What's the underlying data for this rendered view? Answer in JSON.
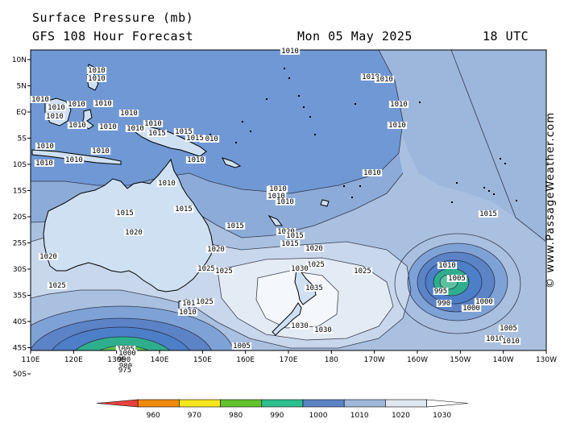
{
  "header": {
    "title": "Surface Pressure (mb)",
    "subtitle": "GFS 108 Hour Forecast",
    "date": "Mon 05 May 2025",
    "time": "18 UTC"
  },
  "credit": "© www.PassageWeather.com",
  "axes": {
    "lat_labels": [
      "10N",
      "5N",
      "EQ",
      "5S",
      "10S",
      "15S",
      "20S",
      "25S",
      "30S",
      "35S",
      "40S",
      "45S",
      "50S"
    ],
    "lon_labels": [
      "110E",
      "120E",
      "130E",
      "140E",
      "150E",
      "160E",
      "170E",
      "180",
      "170W",
      "160W",
      "150W",
      "140W",
      "130W"
    ]
  },
  "legend": {
    "ticks": [
      "960",
      "970",
      "980",
      "990",
      "1000",
      "1010",
      "1020",
      "1030"
    ],
    "colors": [
      "#e8413b",
      "#f08a0c",
      "#f7e61e",
      "#63c22e",
      "#2fbf8f",
      "#5b83c5",
      "#9fb7d8",
      "#dfe7f1",
      "#ffffff"
    ]
  },
  "palette": {
    "band_1010_below": "#6f98d4",
    "band_1010_1015": "#88aad9",
    "band_1015_1020": "#a9c0e0",
    "band_1020_1025": "#c8d7ec",
    "band_1025_1030": "#e3ebf5",
    "band_1030_above": "#f4f7fb",
    "low_1000": "#4d7ec8",
    "low_990": "#2fae8d",
    "low_980": "#5ec24f",
    "low_970": "#f7e61e"
  },
  "isobar_labels": [
    {
      "text": "1010"
    },
    {
      "text": "1010"
    },
    {
      "text": "1010"
    },
    {
      "text": "1010"
    },
    {
      "text": "1010"
    },
    {
      "text": "1010"
    },
    {
      "text": "1010"
    },
    {
      "text": "1010"
    },
    {
      "text": "1010"
    },
    {
      "text": "1010"
    },
    {
      "text": "1010"
    },
    {
      "text": "1010"
    },
    {
      "text": "1010"
    },
    {
      "text": "1010"
    },
    {
      "text": "1010"
    },
    {
      "text": "1010"
    },
    {
      "text": "1010"
    },
    {
      "text": "1010"
    },
    {
      "text": "1010"
    },
    {
      "text": "1010"
    },
    {
      "text": "1010"
    },
    {
      "text": "1010"
    },
    {
      "text": "1010"
    },
    {
      "text": "1010"
    },
    {
      "text": "1010"
    },
    {
      "text": "1015"
    },
    {
      "text": "1015"
    },
    {
      "text": "1015"
    },
    {
      "text": "1015"
    },
    {
      "text": "1015"
    },
    {
      "text": "1015"
    },
    {
      "text": "1015"
    },
    {
      "text": "1015"
    },
    {
      "text": "1020"
    },
    {
      "text": "1020"
    },
    {
      "text": "1020"
    },
    {
      "text": "1020"
    },
    {
      "text": "1020"
    },
    {
      "text": "1025"
    },
    {
      "text": "1025"
    },
    {
      "text": "1025"
    },
    {
      "text": "1025"
    },
    {
      "text": "1025"
    },
    {
      "text": "1030"
    },
    {
      "text": "1030"
    },
    {
      "text": "1030"
    },
    {
      "text": "1035"
    },
    {
      "text": "1010"
    },
    {
      "text": "1005"
    },
    {
      "text": "995"
    },
    {
      "text": "990"
    },
    {
      "text": "1000"
    },
    {
      "text": "1000"
    },
    {
      "text": "1005"
    },
    {
      "text": "1010"
    },
    {
      "text": "1010"
    },
    {
      "text": "1005"
    },
    {
      "text": "1000"
    },
    {
      "text": "990"
    },
    {
      "text": "980"
    },
    {
      "text": "975"
    },
    {
      "text": "1005"
    },
    {
      "text": "1015"
    },
    {
      "text": "1010"
    },
    {
      "text": "1025"
    },
    {
      "text": "1010"
    },
    {
      "text": "1010"
    },
    {
      "text": "1015"
    },
    {
      "text": "1010"
    },
    {
      "text": "1010"
    }
  ]
}
